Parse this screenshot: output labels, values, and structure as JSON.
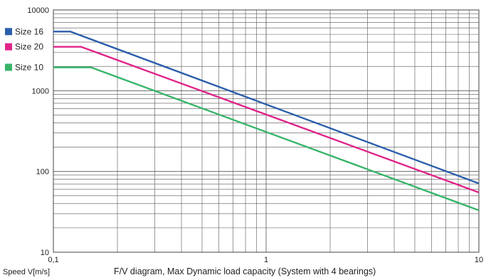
{
  "chart_data": {
    "type": "line",
    "title": "F/V diagram, Max  Dynamic load capacity (System with 4 bearings)",
    "xlabel": "Speed V[m/s]",
    "ylabel": "",
    "x_scale": "log",
    "y_scale": "log",
    "xlim": [
      0.1,
      10
    ],
    "ylim": [
      10,
      10000
    ],
    "x_ticks": [
      0.1,
      1,
      10
    ],
    "x_tick_labels": [
      "0,1",
      "1",
      "10"
    ],
    "y_ticks": [
      10,
      100,
      1000,
      10000
    ],
    "y_tick_labels": [
      "10",
      "100",
      "1000",
      "10000"
    ],
    "grid": true,
    "legend_position": "top-left",
    "series": [
      {
        "name": "Size 16",
        "color": "#2b5fab",
        "x": [
          0.1,
          0.12,
          10
        ],
        "y": [
          5400,
          5400,
          71
        ]
      },
      {
        "name": "Size 20",
        "color": "#e0258a",
        "x": [
          0.1,
          0.135,
          10
        ],
        "y": [
          3500,
          3500,
          55
        ]
      },
      {
        "name": "Size 10",
        "color": "#38b56a",
        "x": [
          0.1,
          0.15,
          10
        ],
        "y": [
          1950,
          1950,
          33
        ]
      }
    ]
  }
}
